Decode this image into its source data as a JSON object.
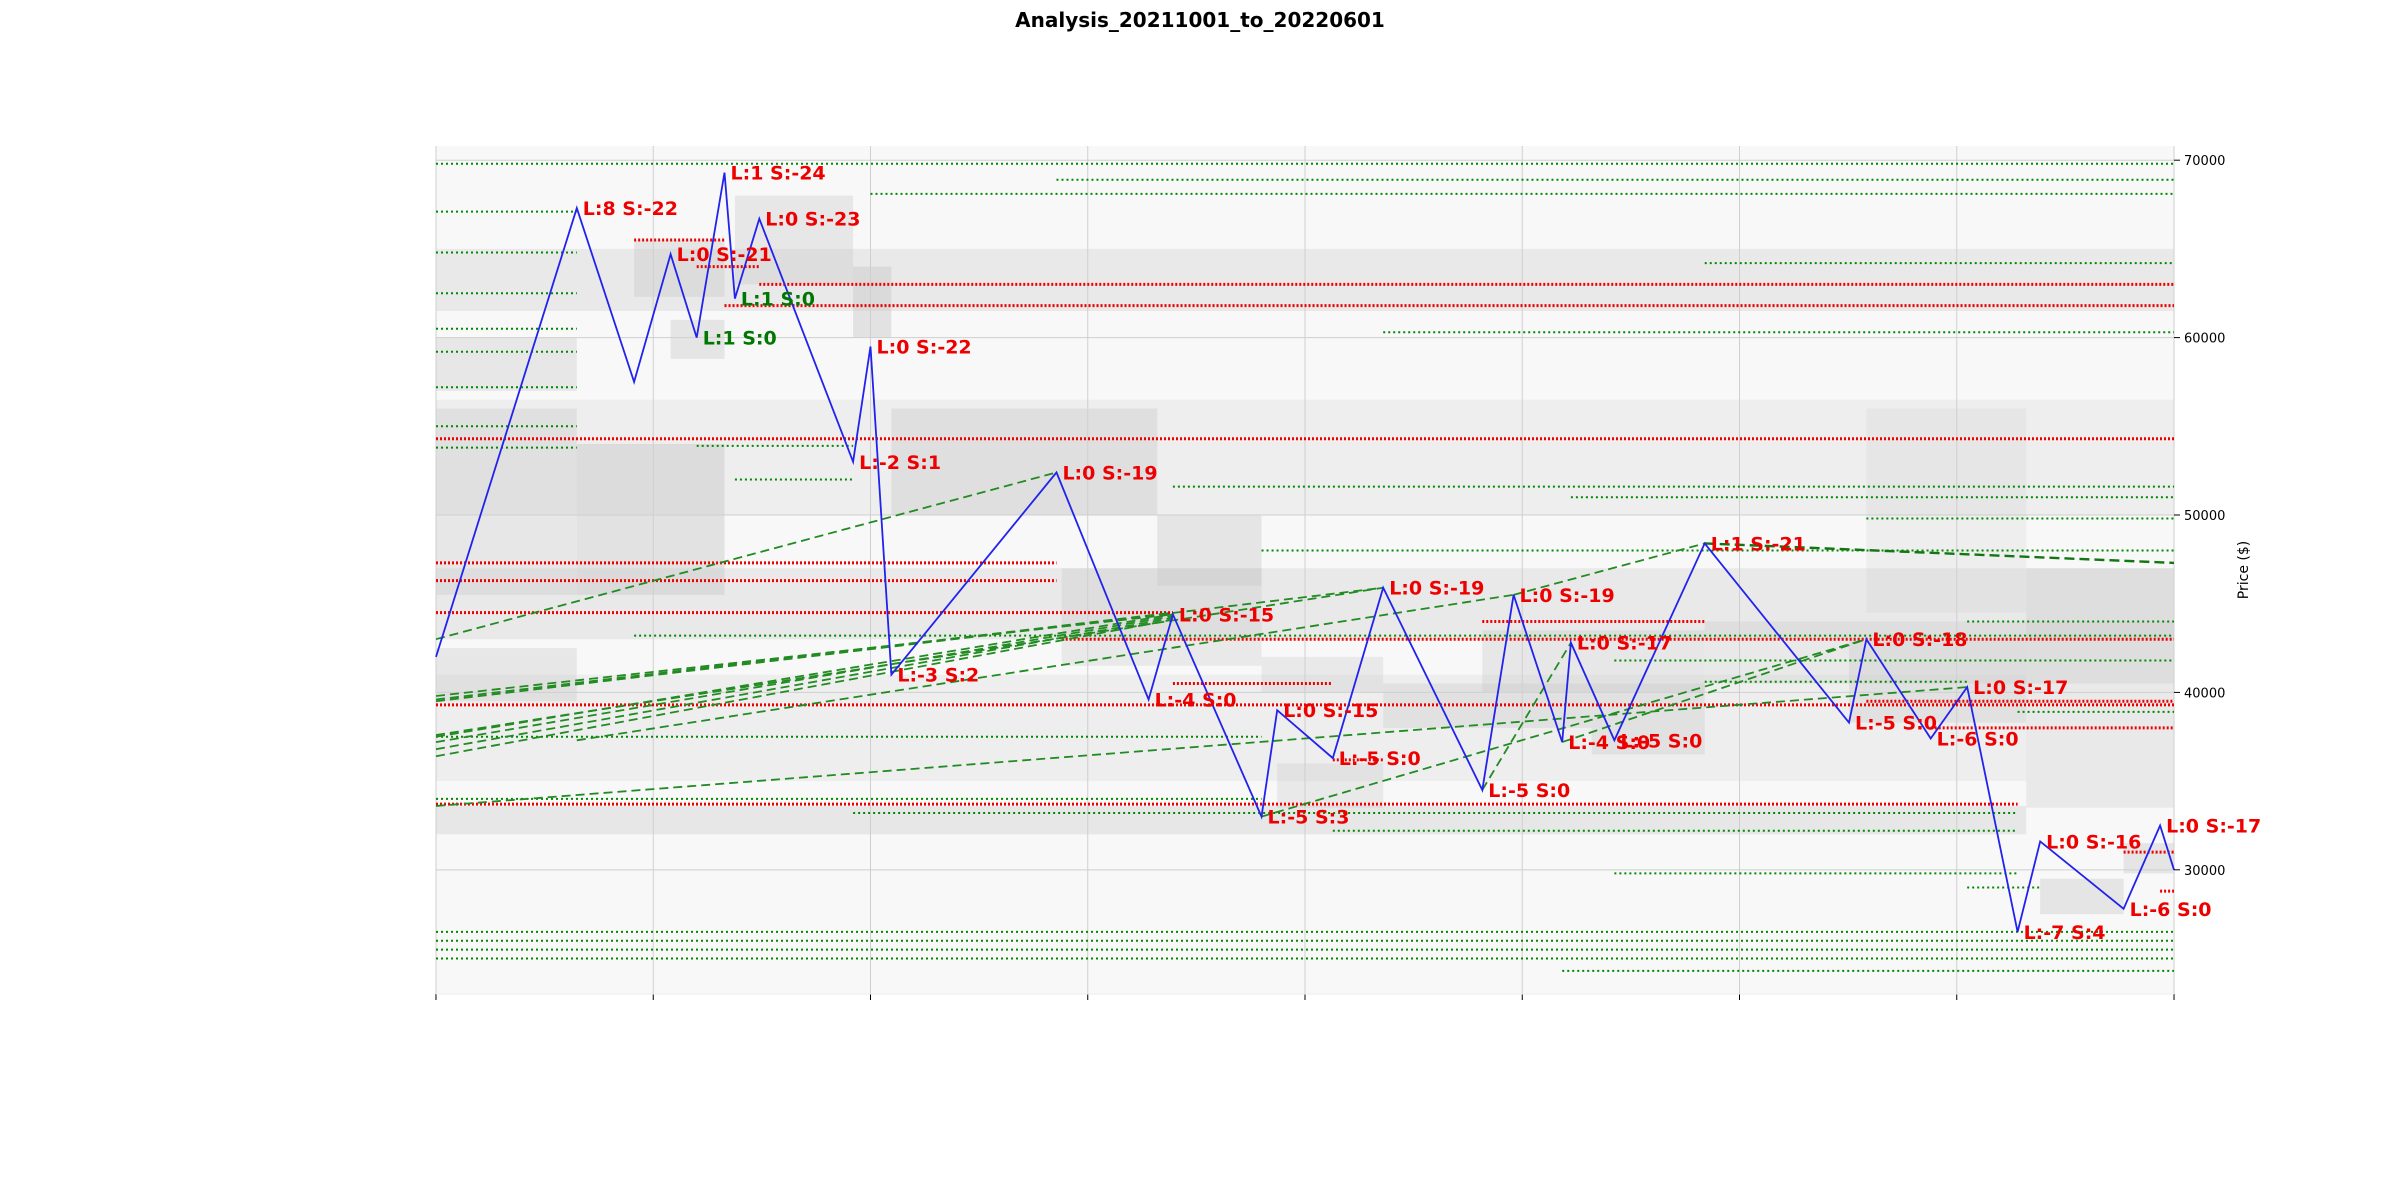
{
  "chart_data": {
    "type": "line",
    "title": "Analysis_20211001_to_20220601",
    "ylabel": "Price ($)",
    "xlabel": "",
    "ylim": [
      23000,
      70800
    ],
    "yticks": [
      30000,
      40000,
      50000,
      60000,
      70000
    ],
    "x_tick_count": 9,
    "grid": true,
    "colors": {
      "price_line": "#2222ee",
      "support": "#008800",
      "resistance": "#ee0000",
      "trend": "#228B22",
      "zone": "#c8c8c8",
      "plot_bg": "#f8f8f8"
    },
    "series": [
      {
        "name": "price",
        "points": [
          [
            0.0,
            42000
          ],
          [
            8.1,
            67300
          ],
          [
            11.4,
            57500
          ],
          [
            13.5,
            64700
          ],
          [
            15.0,
            60000
          ],
          [
            16.6,
            69300
          ],
          [
            17.2,
            62200
          ],
          [
            18.6,
            66700
          ],
          [
            24.0,
            53000
          ],
          [
            25.0,
            59500
          ],
          [
            26.2,
            41000
          ],
          [
            35.7,
            52400
          ],
          [
            41.0,
            39600
          ],
          [
            42.4,
            44400
          ],
          [
            47.5,
            33000
          ],
          [
            48.4,
            39000
          ],
          [
            51.6,
            36300
          ],
          [
            54.5,
            45900
          ],
          [
            60.2,
            34500
          ],
          [
            62.0,
            45500
          ],
          [
            64.8,
            37200
          ],
          [
            65.3,
            42800
          ],
          [
            67.8,
            37300
          ],
          [
            73.0,
            48400
          ],
          [
            81.3,
            38300
          ],
          [
            82.3,
            43000
          ],
          [
            86.0,
            37400
          ],
          [
            88.1,
            40300
          ],
          [
            91.0,
            26500
          ],
          [
            92.3,
            31600
          ],
          [
            97.1,
            27800
          ],
          [
            99.2,
            32500
          ],
          [
            100.0,
            30000
          ]
        ]
      }
    ],
    "pivot_labels": [
      {
        "text": "L:8 S:-22",
        "x": 8.1,
        "y": 67300,
        "color": "red"
      },
      {
        "text": "L:0 S:-21",
        "x": 13.5,
        "y": 64700,
        "color": "red"
      },
      {
        "text": "L:1 S:0",
        "x": 15.0,
        "y": 60000,
        "color": "green"
      },
      {
        "text": "L:1 S:-24",
        "x": 16.6,
        "y": 69300,
        "color": "red"
      },
      {
        "text": "L:1 S:0",
        "x": 17.2,
        "y": 62200,
        "color": "green"
      },
      {
        "text": "L:0 S:-23",
        "x": 18.6,
        "y": 66700,
        "color": "red"
      },
      {
        "text": "L:-2 S:1",
        "x": 24.0,
        "y": 53000,
        "color": "red"
      },
      {
        "text": "L:0 S:-22",
        "x": 25.0,
        "y": 59500,
        "color": "red"
      },
      {
        "text": "L:-3 S:2",
        "x": 26.2,
        "y": 41000,
        "color": "red"
      },
      {
        "text": "L:0 S:-19",
        "x": 35.7,
        "y": 52400,
        "color": "red"
      },
      {
        "text": "L:-4 S:0",
        "x": 41.0,
        "y": 39600,
        "color": "red"
      },
      {
        "text": "L:0 S:-15",
        "x": 42.4,
        "y": 44400,
        "color": "red"
      },
      {
        "text": "L:-5 S:3",
        "x": 47.5,
        "y": 33000,
        "color": "red"
      },
      {
        "text": "L:0 S:-15",
        "x": 48.4,
        "y": 39000,
        "color": "red"
      },
      {
        "text": "L:-5 S:0",
        "x": 51.6,
        "y": 36300,
        "color": "red"
      },
      {
        "text": "L:0 S:-19",
        "x": 54.5,
        "y": 45900,
        "color": "red"
      },
      {
        "text": "L:-5 S:0",
        "x": 60.2,
        "y": 34500,
        "color": "red"
      },
      {
        "text": "L:0 S:-19",
        "x": 62.0,
        "y": 45500,
        "color": "red"
      },
      {
        "text": "L:-4 S:0",
        "x": 64.8,
        "y": 37200,
        "color": "red"
      },
      {
        "text": "L:0 S:-17",
        "x": 65.3,
        "y": 42800,
        "color": "red"
      },
      {
        "text": "L:-5 S:0",
        "x": 67.8,
        "y": 37300,
        "color": "red"
      },
      {
        "text": "L:1 S:-21",
        "x": 73.0,
        "y": 48400,
        "color": "red"
      },
      {
        "text": "L:-5 S:0",
        "x": 81.3,
        "y": 38300,
        "color": "red"
      },
      {
        "text": "L:0 S:-18",
        "x": 82.3,
        "y": 43000,
        "color": "red"
      },
      {
        "text": "L:-6 S:0",
        "x": 86.0,
        "y": 37400,
        "color": "red"
      },
      {
        "text": "L:0 S:-17",
        "x": 88.1,
        "y": 40300,
        "color": "red"
      },
      {
        "text": "L:-7 S:4",
        "x": 91.0,
        "y": 26500,
        "color": "red"
      },
      {
        "text": "L:0 S:-16",
        "x": 92.3,
        "y": 31600,
        "color": "red"
      },
      {
        "text": "L:-6 S:0",
        "x": 97.1,
        "y": 27800,
        "color": "red"
      },
      {
        "text": "L:0 S:-17",
        "x": 99.2,
        "y": 32500,
        "color": "red"
      }
    ],
    "zones": [
      {
        "x0": 0,
        "x1": 8.1,
        "y0": 57000,
        "y1": 60000,
        "opacity": 0.35
      },
      {
        "x0": 0,
        "x1": 8.1,
        "y0": 45500,
        "y1": 56000,
        "opacity": 0.35
      },
      {
        "x0": 0,
        "x1": 8.1,
        "y0": 39500,
        "y1": 42500,
        "opacity": 0.35
      },
      {
        "x0": 8.1,
        "x1": 16.6,
        "y0": 45500,
        "y1": 54000,
        "opacity": 0.45
      },
      {
        "x0": 11.4,
        "x1": 16.6,
        "y0": 62300,
        "y1": 65500,
        "opacity": 0.4
      },
      {
        "x0": 13.5,
        "x1": 16.6,
        "y0": 58800,
        "y1": 61000,
        "opacity": 0.4
      },
      {
        "x0": 17.2,
        "x1": 24.0,
        "y0": 63000,
        "y1": 68000,
        "opacity": 0.35
      },
      {
        "x0": 24.0,
        "x1": 26.2,
        "y0": 60000,
        "y1": 64000,
        "opacity": 0.45
      },
      {
        "x0": 26.2,
        "x1": 41.5,
        "y0": 50000,
        "y1": 56000,
        "opacity": 0.4
      },
      {
        "x0": 0,
        "x1": 100,
        "y0": 61500,
        "y1": 65000,
        "opacity": 0.3
      },
      {
        "x0": 0,
        "x1": 100,
        "y0": 50000,
        "y1": 56500,
        "opacity": 0.2
      },
      {
        "x0": 0,
        "x1": 100,
        "y0": 43000,
        "y1": 47000,
        "opacity": 0.3
      },
      {
        "x0": 36,
        "x1": 47.5,
        "y0": 41500,
        "y1": 47000,
        "opacity": 0.3
      },
      {
        "x0": 41.5,
        "x1": 47.5,
        "y0": 46000,
        "y1": 50000,
        "opacity": 0.4
      },
      {
        "x0": 0,
        "x1": 91.5,
        "y0": 35000,
        "y1": 41000,
        "opacity": 0.2
      },
      {
        "x0": 47.5,
        "x1": 54.5,
        "y0": 40000,
        "y1": 42000,
        "opacity": 0.3
      },
      {
        "x0": 48.4,
        "x1": 54.5,
        "y0": 33500,
        "y1": 36000,
        "opacity": 0.3
      },
      {
        "x0": 54.5,
        "x1": 66.5,
        "y0": 38000,
        "y1": 40500,
        "opacity": 0.35
      },
      {
        "x0": 60.2,
        "x1": 73.0,
        "y0": 40000,
        "y1": 43500,
        "opacity": 0.35
      },
      {
        "x0": 66.5,
        "x1": 73.0,
        "y0": 36500,
        "y1": 40500,
        "opacity": 0.35
      },
      {
        "x0": 73.0,
        "x1": 100,
        "y0": 40500,
        "y1": 44000,
        "opacity": 0.3
      },
      {
        "x0": 81.3,
        "x1": 91.5,
        "y0": 38300,
        "y1": 43000,
        "opacity": 0.35
      },
      {
        "x0": 82.3,
        "x1": 91.5,
        "y0": 44500,
        "y1": 56000,
        "opacity": 0.2
      },
      {
        "x0": 0,
        "x1": 91.5,
        "y0": 32000,
        "y1": 33600,
        "opacity": 0.35
      },
      {
        "x0": 91.5,
        "x1": 100,
        "y0": 33500,
        "y1": 47000,
        "opacity": 0.3
      },
      {
        "x0": 92.3,
        "x1": 97.1,
        "y0": 27500,
        "y1": 29500,
        "opacity": 0.4
      },
      {
        "x0": 97.1,
        "x1": 100,
        "y0": 29800,
        "y1": 31500,
        "opacity": 0.4
      }
    ],
    "resistance_levels": [
      {
        "y": 65500,
        "x0": 11.4,
        "x1": 16.6
      },
      {
        "y": 64000,
        "x0": 15.0,
        "x1": 18.6
      },
      {
        "y": 63000,
        "x0": 18.6,
        "x1": 100
      },
      {
        "y": 61800,
        "x0": 16.6,
        "x1": 100
      },
      {
        "y": 54300,
        "x0": 0,
        "x1": 100
      },
      {
        "y": 47300,
        "x0": 0,
        "x1": 35.7
      },
      {
        "y": 46300,
        "x0": 0,
        "x1": 35.7
      },
      {
        "y": 44500,
        "x0": 0,
        "x1": 42.4
      },
      {
        "y": 43000,
        "x0": 36,
        "x1": 100
      },
      {
        "y": 44000,
        "x0": 60.2,
        "x1": 73.0
      },
      {
        "y": 40500,
        "x0": 42.4,
        "x1": 51.6
      },
      {
        "y": 39300,
        "x0": 0,
        "x1": 100
      },
      {
        "y": 39500,
        "x0": 82.3,
        "x1": 100
      },
      {
        "y": 38000,
        "x0": 86.0,
        "x1": 100
      },
      {
        "y": 36200,
        "x0": 51.6,
        "x1": 54.5
      },
      {
        "y": 33700,
        "x0": 0,
        "x1": 91.0
      },
      {
        "y": 31000,
        "x0": 97.1,
        "x1": 100
      },
      {
        "y": 28800,
        "x0": 99.2,
        "x1": 100
      }
    ],
    "support_levels": [
      {
        "y": 69800,
        "x0": 0,
        "x1": 100
      },
      {
        "y": 68900,
        "x0": 35.7,
        "x1": 100
      },
      {
        "y": 68100,
        "x0": 25.0,
        "x1": 100
      },
      {
        "y": 67100,
        "x0": 0,
        "x1": 8.1
      },
      {
        "y": 64800,
        "x0": 0,
        "x1": 8.1
      },
      {
        "y": 64200,
        "x0": 73.0,
        "x1": 100
      },
      {
        "y": 62500,
        "x0": 0,
        "x1": 8.1
      },
      {
        "y": 60500,
        "x0": 0,
        "x1": 8.1
      },
      {
        "y": 60300,
        "x0": 54.5,
        "x1": 100
      },
      {
        "y": 59200,
        "x0": 0,
        "x1": 8.1
      },
      {
        "y": 57200,
        "x0": 0,
        "x1": 8.1
      },
      {
        "y": 55000,
        "x0": 0,
        "x1": 8.1
      },
      {
        "y": 53800,
        "x0": 0,
        "x1": 8.1
      },
      {
        "y": 53900,
        "x0": 15.0,
        "x1": 24.0
      },
      {
        "y": 52000,
        "x0": 17.2,
        "x1": 24.0
      },
      {
        "y": 51600,
        "x0": 42.4,
        "x1": 100
      },
      {
        "y": 51000,
        "x0": 65.3,
        "x1": 100
      },
      {
        "y": 49800,
        "x0": 82.3,
        "x1": 100
      },
      {
        "y": 48000,
        "x0": 47.5,
        "x1": 100
      },
      {
        "y": 44000,
        "x0": 88.1,
        "x1": 100
      },
      {
        "y": 43200,
        "x0": 11.4,
        "x1": 100
      },
      {
        "y": 41800,
        "x0": 67.8,
        "x1": 100
      },
      {
        "y": 40600,
        "x0": 73.0,
        "x1": 88.1
      },
      {
        "y": 38900,
        "x0": 91.0,
        "x1": 100
      },
      {
        "y": 37500,
        "x0": 0,
        "x1": 47.5
      },
      {
        "y": 34000,
        "x0": 0,
        "x1": 47.5
      },
      {
        "y": 33200,
        "x0": 24.0,
        "x1": 91.0
      },
      {
        "y": 32200,
        "x0": 51.6,
        "x1": 91.0
      },
      {
        "y": 29800,
        "x0": 67.8,
        "x1": 91.0
      },
      {
        "y": 29000,
        "x0": 88.1,
        "x1": 92.3
      },
      {
        "y": 26500,
        "x0": 0,
        "x1": 100
      },
      {
        "y": 26000,
        "x0": 0,
        "x1": 100
      },
      {
        "y": 25500,
        "x0": 0,
        "x1": 100
      },
      {
        "y": 25000,
        "x0": 0,
        "x1": 100
      },
      {
        "y": 24300,
        "x0": 64.8,
        "x1": 100
      }
    ],
    "trend_lines": [
      {
        "x0": 0,
        "y0": 43000,
        "x1": 35.7,
        "y1": 52400
      },
      {
        "x0": 0,
        "y0": 39800,
        "x1": 42.4,
        "y1": 44400
      },
      {
        "x0": 0,
        "y0": 39600,
        "x1": 42.4,
        "y1": 44500
      },
      {
        "x0": 0,
        "y0": 37500,
        "x1": 42.4,
        "y1": 44400
      },
      {
        "x0": 0,
        "y0": 37200,
        "x1": 42.4,
        "y1": 44300
      },
      {
        "x0": 0,
        "y0": 36800,
        "x1": 42.4,
        "y1": 44200
      },
      {
        "x0": 0,
        "y0": 36400,
        "x1": 42.4,
        "y1": 44100
      },
      {
        "x0": 0,
        "y0": 39500,
        "x1": 54.5,
        "y1": 45900
      },
      {
        "x0": 0,
        "y0": 33600,
        "x1": 88.1,
        "y1": 40300
      },
      {
        "x0": 8.1,
        "y0": 37300,
        "x1": 62.0,
        "y1": 45500
      },
      {
        "x0": 0,
        "y0": 37600,
        "x1": 54.5,
        "y1": 45900
      },
      {
        "x0": 47.5,
        "y0": 33000,
        "x1": 82.3,
        "y1": 43000
      },
      {
        "x0": 60.2,
        "y0": 34500,
        "x1": 65.3,
        "y1": 42800
      },
      {
        "x0": 64.8,
        "y0": 37200,
        "x1": 82.3,
        "y1": 43000
      },
      {
        "x0": 62.0,
        "y0": 45500,
        "x1": 73.0,
        "y1": 48400
      }
    ],
    "main_trend": {
      "x0": 73.0,
      "y0": 48400,
      "x1": 100,
      "y1": 47300
    }
  }
}
